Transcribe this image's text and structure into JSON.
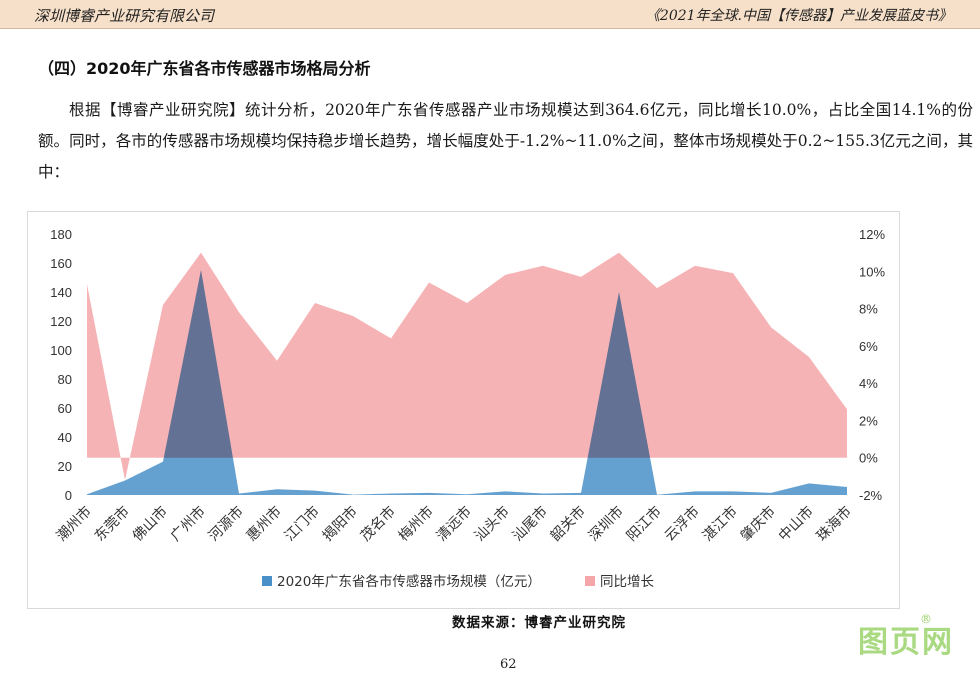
{
  "header": {
    "left": "深圳博睿产业研究有限公司",
    "right": "《2021年全球.中国【传感器】产业发展蓝皮书》"
  },
  "section_title": "（四）2020年广东省各市传感器市场格局分析",
  "paragraph": "根据【博睿产业研究院】统计分析，2020年广东省传感器产业市场规模达到364.6亿元，同比增长10.0%，占比全国14.1%的份额。同时，各市的传感器市场规模均保持稳步增长趋势，增长幅度处于-1.2%~11.0%之间，整体市场规模处于0.2~155.3亿元之间，其中：",
  "chart_data": {
    "type": "area",
    "categories": [
      "潮州市",
      "东莞市",
      "佛山市",
      "广州市",
      "河源市",
      "惠州市",
      "江门市",
      "揭阳市",
      "茂名市",
      "梅州市",
      "清远市",
      "汕头市",
      "汕尾市",
      "韶关市",
      "深圳市",
      "阳江市",
      "云浮市",
      "湛江市",
      "肇庆市",
      "中山市",
      "珠海市"
    ],
    "series": [
      {
        "name": "2020年广东省各市传感器市场规模（亿元）",
        "axis": "left",
        "color": "#4a90c8",
        "values": [
          0.5,
          10,
          23,
          155.3,
          1,
          4,
          3,
          0.3,
          1,
          1.5,
          0.5,
          2.5,
          1,
          1.5,
          140,
          0.2,
          2.5,
          2.5,
          1.5,
          8,
          5.5
        ]
      },
      {
        "name": "同比增长",
        "axis": "right",
        "color": "#f4a6a8",
        "values": [
          9.3,
          -1.2,
          8.2,
          11.0,
          7.8,
          5.2,
          8.3,
          7.6,
          6.4,
          9.4,
          8.3,
          9.8,
          10.3,
          9.7,
          11.0,
          9.1,
          10.3,
          9.9,
          7.0,
          5.4,
          2.6
        ]
      }
    ],
    "y_left": {
      "ticks": [
        0,
        20,
        40,
        60,
        80,
        100,
        120,
        140,
        160,
        180
      ],
      "ylim": [
        0,
        180
      ]
    },
    "y_right": {
      "ticks": [
        "-2%",
        "0%",
        "2%",
        "4%",
        "6%",
        "8%",
        "10%",
        "12%"
      ],
      "ylim": [
        -2,
        12
      ]
    },
    "legend_position": "bottom",
    "grid": false
  },
  "source": "数据来源：博睿产业研究院",
  "page_number": "62",
  "watermark": "图页网"
}
